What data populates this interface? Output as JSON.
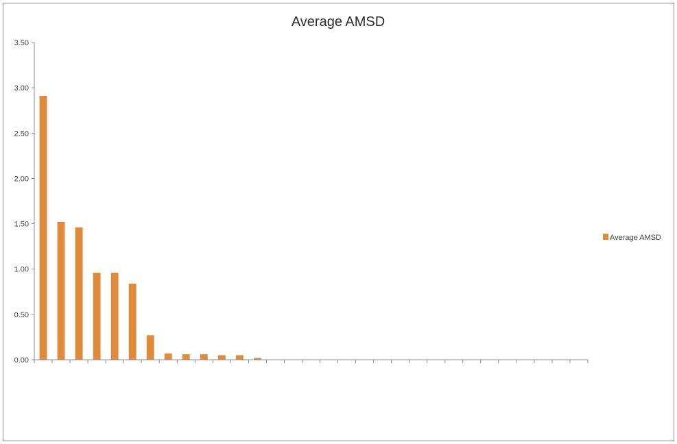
{
  "chart_data": {
    "type": "bar",
    "title": "Average AMSD",
    "xlabel": "",
    "ylabel": "",
    "ylim": [
      0,
      3.5
    ],
    "yticks": [
      "0.00",
      "0.50",
      "1.00",
      "1.50",
      "2.00",
      "2.50",
      "3.00",
      "3.50"
    ],
    "category_count": 31,
    "series": [
      {
        "name": "Average AMSD",
        "color": "#E08A3C",
        "values": [
          2.91,
          1.52,
          1.46,
          0.96,
          0.96,
          0.84,
          0.27,
          0.07,
          0.06,
          0.06,
          0.05,
          0.05,
          0.02,
          0,
          0,
          0,
          0,
          0,
          0,
          0,
          0,
          0,
          0,
          0,
          0,
          0,
          0,
          0,
          0,
          0,
          0
        ]
      }
    ],
    "grid": false,
    "legend": "right"
  }
}
